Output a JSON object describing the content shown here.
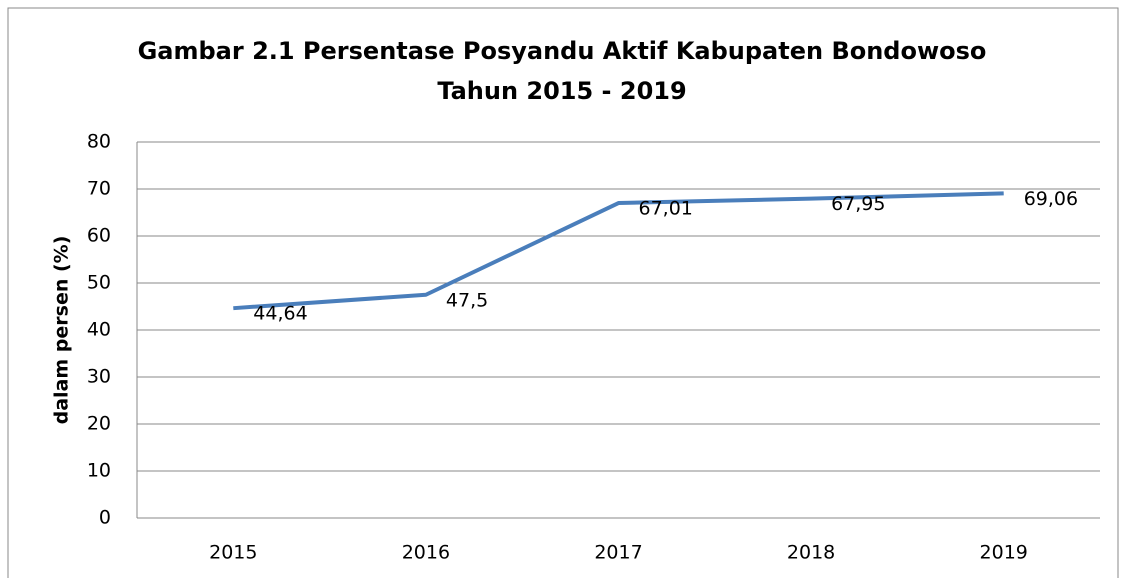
{
  "chart_data": {
    "type": "line",
    "title": [
      "Gambar 2.1 Persentase Posyandu Aktif Kabupaten Bondowoso",
      "Tahun 2015 - 2019"
    ],
    "y_label": "dalam persen (%)",
    "categories": [
      "2015",
      "2016",
      "2017",
      "2018",
      "2019"
    ],
    "values": [
      44.64,
      47.5,
      67.01,
      67.95,
      69.06
    ],
    "value_labels": [
      "44,64",
      "47,5",
      "67,01",
      "67,95",
      "69,06"
    ],
    "color": "#4a7ebb",
    "ylim": [
      0,
      80
    ],
    "yticks": [
      0,
      10,
      20,
      30,
      40,
      50,
      60,
      70,
      80
    ],
    "grid": true
  }
}
